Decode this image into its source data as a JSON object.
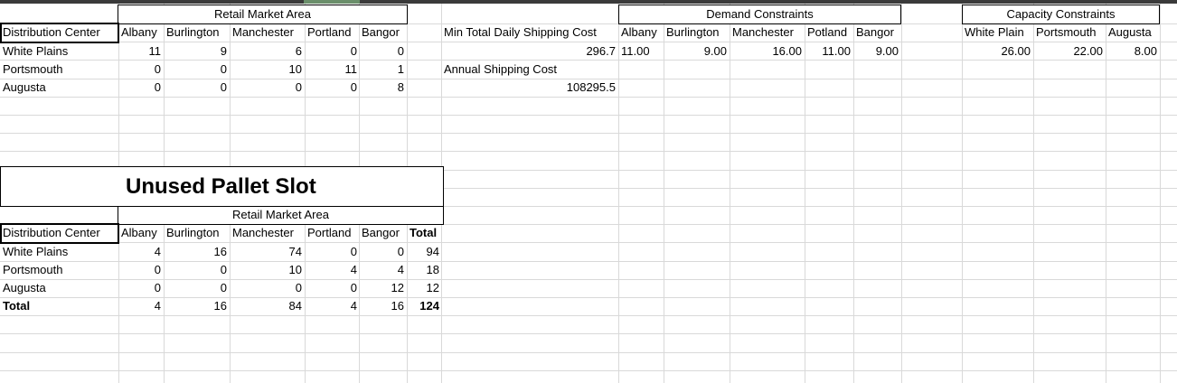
{
  "top": {
    "header": "Retail Market Area",
    "row_label_header": "Distribution Center",
    "columns": [
      "Albany",
      "Burlington",
      "Manchester",
      "Portland",
      "Bangor"
    ],
    "rows": [
      {
        "label": "White Plains",
        "values": [
          "11",
          "9",
          "6",
          "0",
          "0"
        ]
      },
      {
        "label": "Portsmouth",
        "values": [
          "0",
          "0",
          "10",
          "11",
          "1"
        ]
      },
      {
        "label": "Augusta",
        "values": [
          "0",
          "0",
          "0",
          "0",
          "8"
        ]
      }
    ]
  },
  "cost": {
    "min_label": "Min Total Daily Shipping Cost",
    "min_value": "296.7",
    "annual_label": "Annual Shipping Cost",
    "annual_value": "108295.5"
  },
  "demand": {
    "header": "Demand Constraints",
    "columns": [
      "Albany",
      "Burlington",
      "Manchester",
      "Potland",
      "Bangor"
    ],
    "values": [
      "11.00",
      "9.00",
      "16.00",
      "11.00",
      "9.00"
    ]
  },
  "capacity": {
    "header": "Capacity Constraints",
    "columns": [
      "White Plain",
      "Portsmouth",
      "Augusta"
    ],
    "values": [
      "26.00",
      "22.00",
      "8.00"
    ]
  },
  "unused": {
    "title": "Unused Pallet Slot",
    "header": "Retail Market Area",
    "row_label_header": "Distribution Center",
    "columns": [
      "Albany",
      "Burlington",
      "Manchester",
      "Portland",
      "Bangor",
      "Total"
    ],
    "rows": [
      {
        "label": "White Plains",
        "values": [
          "4",
          "16",
          "74",
          "0",
          "0",
          "94"
        ]
      },
      {
        "label": "Portsmouth",
        "values": [
          "0",
          "0",
          "10",
          "4",
          "4",
          "18"
        ]
      },
      {
        "label": "Augusta",
        "values": [
          "0",
          "0",
          "0",
          "0",
          "12",
          "12"
        ]
      },
      {
        "label": "Total",
        "values": [
          "4",
          "16",
          "84",
          "4",
          "16",
          "124"
        ]
      }
    ]
  }
}
